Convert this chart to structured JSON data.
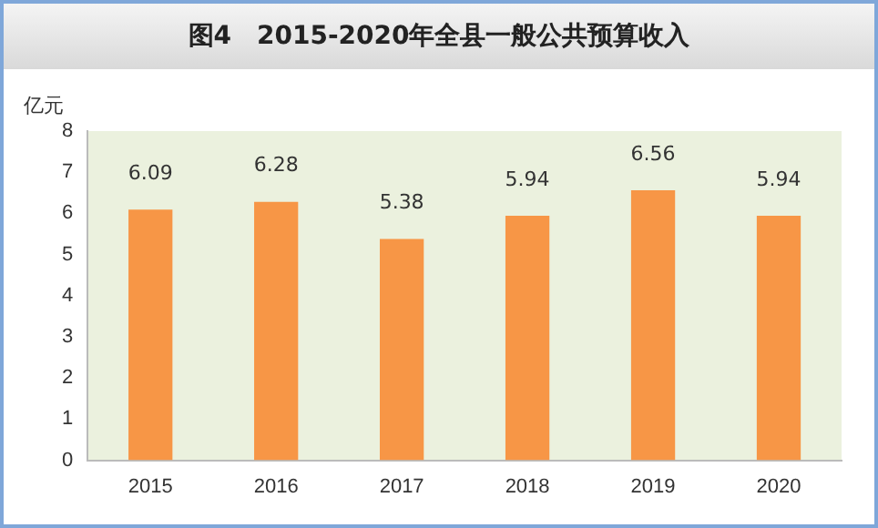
{
  "chart_data": {
    "type": "bar",
    "title": "图4　2015-2020年全县一般公共预算收入",
    "ylabel": "亿元",
    "categories": [
      "2015",
      "2016",
      "2017",
      "2018",
      "2019",
      "2020"
    ],
    "values": [
      6.09,
      6.28,
      5.38,
      5.94,
      6.56,
      5.94
    ],
    "color": "#f79646",
    "ylim": [
      0,
      8
    ],
    "yticks": [
      0,
      1,
      2,
      3,
      4,
      5,
      6,
      7,
      8
    ],
    "grid": false,
    "legend": false,
    "data_labels": true
  }
}
